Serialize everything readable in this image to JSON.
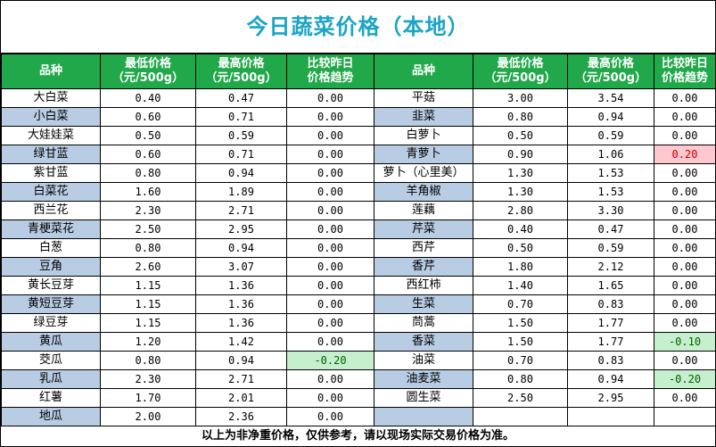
{
  "title": "今日蔬菜价格（本地）",
  "headers": {
    "name": "品种",
    "min": [
      "最低价格",
      "（元/500g）"
    ],
    "max": [
      "最高价格",
      "（元/500g）"
    ],
    "trend": [
      "比较昨日",
      "价格趋势"
    ]
  },
  "colors": {
    "header_bg": "#21a84a",
    "title": "#1aa5c7",
    "row_blue": "#b8cce4",
    "up": "#ffc7ce",
    "down": "#c6efce"
  },
  "rows": [
    {
      "left": {
        "name": "大白菜",
        "min": "0.40",
        "max": "0.47",
        "trend": "0.00"
      },
      "right": {
        "name": "平菇",
        "min": "3.00",
        "max": "3.54",
        "trend": "0.00"
      }
    },
    {
      "left": {
        "name": "小白菜",
        "min": "0.60",
        "max": "0.71",
        "trend": "0.00"
      },
      "right": {
        "name": "韭菜",
        "min": "0.80",
        "max": "0.94",
        "trend": "0.00"
      }
    },
    {
      "left": {
        "name": "大娃娃菜",
        "min": "0.50",
        "max": "0.59",
        "trend": "0.00"
      },
      "right": {
        "name": "白萝卜",
        "min": "0.50",
        "max": "0.59",
        "trend": "0.00"
      }
    },
    {
      "left": {
        "name": "绿甘蓝",
        "min": "0.60",
        "max": "0.71",
        "trend": "0.00"
      },
      "right": {
        "name": "青萝卜",
        "min": "0.90",
        "max": "1.06",
        "trend": "0.20",
        "flag": "up"
      }
    },
    {
      "left": {
        "name": "紫甘蓝",
        "min": "0.80",
        "max": "0.94",
        "trend": "0.00"
      },
      "right": {
        "name": "萝卜（心里美）",
        "min": "1.30",
        "max": "1.53",
        "trend": "0.00"
      }
    },
    {
      "left": {
        "name": "白菜花",
        "min": "1.60",
        "max": "1.89",
        "trend": "0.00"
      },
      "right": {
        "name": "羊角椒",
        "min": "1.30",
        "max": "1.53",
        "trend": "0.00"
      }
    },
    {
      "left": {
        "name": "西兰花",
        "min": "2.30",
        "max": "2.71",
        "trend": "0.00"
      },
      "right": {
        "name": "莲藕",
        "min": "2.80",
        "max": "3.30",
        "trend": "0.00"
      }
    },
    {
      "left": {
        "name": "青梗菜花",
        "min": "2.50",
        "max": "2.95",
        "trend": "0.00"
      },
      "right": {
        "name": "芹菜",
        "min": "0.40",
        "max": "0.47",
        "trend": "0.00"
      }
    },
    {
      "left": {
        "name": "白葱",
        "min": "0.80",
        "max": "0.94",
        "trend": "0.00"
      },
      "right": {
        "name": "西芹",
        "min": "0.50",
        "max": "0.59",
        "trend": "0.00"
      }
    },
    {
      "left": {
        "name": "豆角",
        "min": "2.60",
        "max": "3.07",
        "trend": "0.00"
      },
      "right": {
        "name": "香芹",
        "min": "1.80",
        "max": "2.12",
        "trend": "0.00"
      }
    },
    {
      "left": {
        "name": "黄长豆芽",
        "min": "1.15",
        "max": "1.36",
        "trend": "0.00"
      },
      "right": {
        "name": "西红柿",
        "min": "1.40",
        "max": "1.65",
        "trend": "0.00"
      }
    },
    {
      "left": {
        "name": "黄短豆芽",
        "min": "1.15",
        "max": "1.36",
        "trend": "0.00"
      },
      "right": {
        "name": "生菜",
        "min": "0.70",
        "max": "0.83",
        "trend": "0.00"
      }
    },
    {
      "left": {
        "name": "绿豆芽",
        "min": "1.15",
        "max": "1.36",
        "trend": "0.00"
      },
      "right": {
        "name": "茼蒿",
        "min": "1.50",
        "max": "1.77",
        "trend": "0.00"
      }
    },
    {
      "left": {
        "name": "黄瓜",
        "min": "1.20",
        "max": "1.42",
        "trend": "0.00"
      },
      "right": {
        "name": "香菜",
        "min": "1.50",
        "max": "1.77",
        "trend": "-0.10",
        "flag": "down"
      }
    },
    {
      "left": {
        "name": "茭瓜",
        "min": "0.80",
        "max": "0.94",
        "trend": "-0.20",
        "flag": "down"
      },
      "right": {
        "name": "油菜",
        "min": "0.70",
        "max": "0.83",
        "trend": "0.00"
      }
    },
    {
      "left": {
        "name": "乳瓜",
        "min": "2.30",
        "max": "2.71",
        "trend": "0.00"
      },
      "right": {
        "name": "油麦菜",
        "min": "0.80",
        "max": "0.94",
        "trend": "-0.20",
        "flag": "down"
      }
    },
    {
      "left": {
        "name": "红薯",
        "min": "1.70",
        "max": "2.01",
        "trend": "0.00"
      },
      "right": {
        "name": "圆生菜",
        "min": "2.50",
        "max": "2.95",
        "trend": "0.00"
      }
    },
    {
      "left": {
        "name": "地瓜",
        "min": "2.00",
        "max": "2.36",
        "trend": "0.00"
      },
      "right": {
        "name": "",
        "min": "",
        "max": "",
        "trend": ""
      }
    }
  ],
  "footer": "以上为非净重价格，仅供参考，请以现场实际交易价格为准。"
}
